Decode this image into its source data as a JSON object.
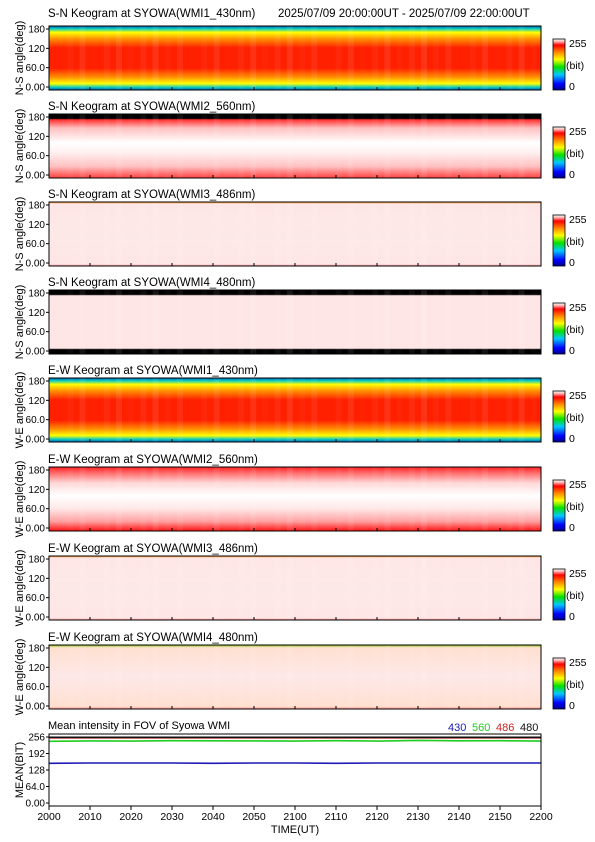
{
  "header": {
    "time_range": "2025/07/09 20:00:00UT - 2025/07/09 22:00:00UT"
  },
  "colorbar": {
    "max_label": "255",
    "unit_label": "(bit)",
    "min_label": "0"
  },
  "keogram_yticks": [
    "180",
    "120",
    "60.0",
    "0.00"
  ],
  "panels": [
    {
      "title": "S-N Keogram at SYOWA(WMI1_430nm)",
      "ylabel": "N-S angle(deg)",
      "style": "red_core"
    },
    {
      "title": "S-N Keogram at SYOWA(WMI2_560nm)",
      "ylabel": "N-S angle(deg)",
      "style": "white_band"
    },
    {
      "title": "S-N Keogram at SYOWA(WMI3_486nm)",
      "ylabel": "N-S angle(deg)",
      "style": "saturated"
    },
    {
      "title": "S-N Keogram at SYOWA(WMI4_480nm)",
      "ylabel": "N-S angle(deg)",
      "style": "saturated_black_edges"
    },
    {
      "title": "E-W Keogram at SYOWA(WMI1_430nm)",
      "ylabel": "W-E angle(deg)",
      "style": "red_core"
    },
    {
      "title": "E-W Keogram at SYOWA(WMI2_560nm)",
      "ylabel": "W-E angle(deg)",
      "style": "white_band_red_edges"
    },
    {
      "title": "E-W Keogram at SYOWA(WMI3_486nm)",
      "ylabel": "W-E angle(deg)",
      "style": "saturated"
    },
    {
      "title": "E-W Keogram at SYOWA(WMI4_480nm)",
      "ylabel": "W-E angle(deg)",
      "style": "saturated_green_edges"
    }
  ],
  "chart_data": {
    "type": "line",
    "title": "Mean intensity in FOV of Syowa WMI",
    "xlabel": "TIME(UT)",
    "ylabel": "MEAN(BIT)",
    "x": [
      "2000",
      "2010",
      "2020",
      "2030",
      "2040",
      "2050",
      "2100",
      "2110",
      "2120",
      "2130",
      "2140",
      "2150",
      "2200"
    ],
    "yticks": [
      "256",
      "192",
      "128",
      "64.0",
      "0.00"
    ],
    "ylim": [
      0,
      256
    ],
    "series": [
      {
        "name": "430",
        "color": "#1a1ab4",
        "values": [
          154,
          155,
          155,
          155,
          154,
          155,
          155,
          154,
          155,
          155,
          155,
          155,
          155
        ]
      },
      {
        "name": "560",
        "color": "#22cc22",
        "values": [
          240,
          240,
          241,
          241,
          242,
          240,
          241,
          241,
          241,
          242,
          242,
          241,
          241
        ]
      },
      {
        "name": "486",
        "color": "#cc2020",
        "values": [
          253,
          253,
          253,
          253,
          253,
          253,
          253,
          253,
          253,
          253,
          253,
          253,
          253
        ]
      },
      {
        "name": "480",
        "color": "#111111",
        "values": [
          255,
          255,
          255,
          255,
          255,
          255,
          255,
          255,
          255,
          255,
          255,
          255,
          255
        ]
      }
    ]
  }
}
